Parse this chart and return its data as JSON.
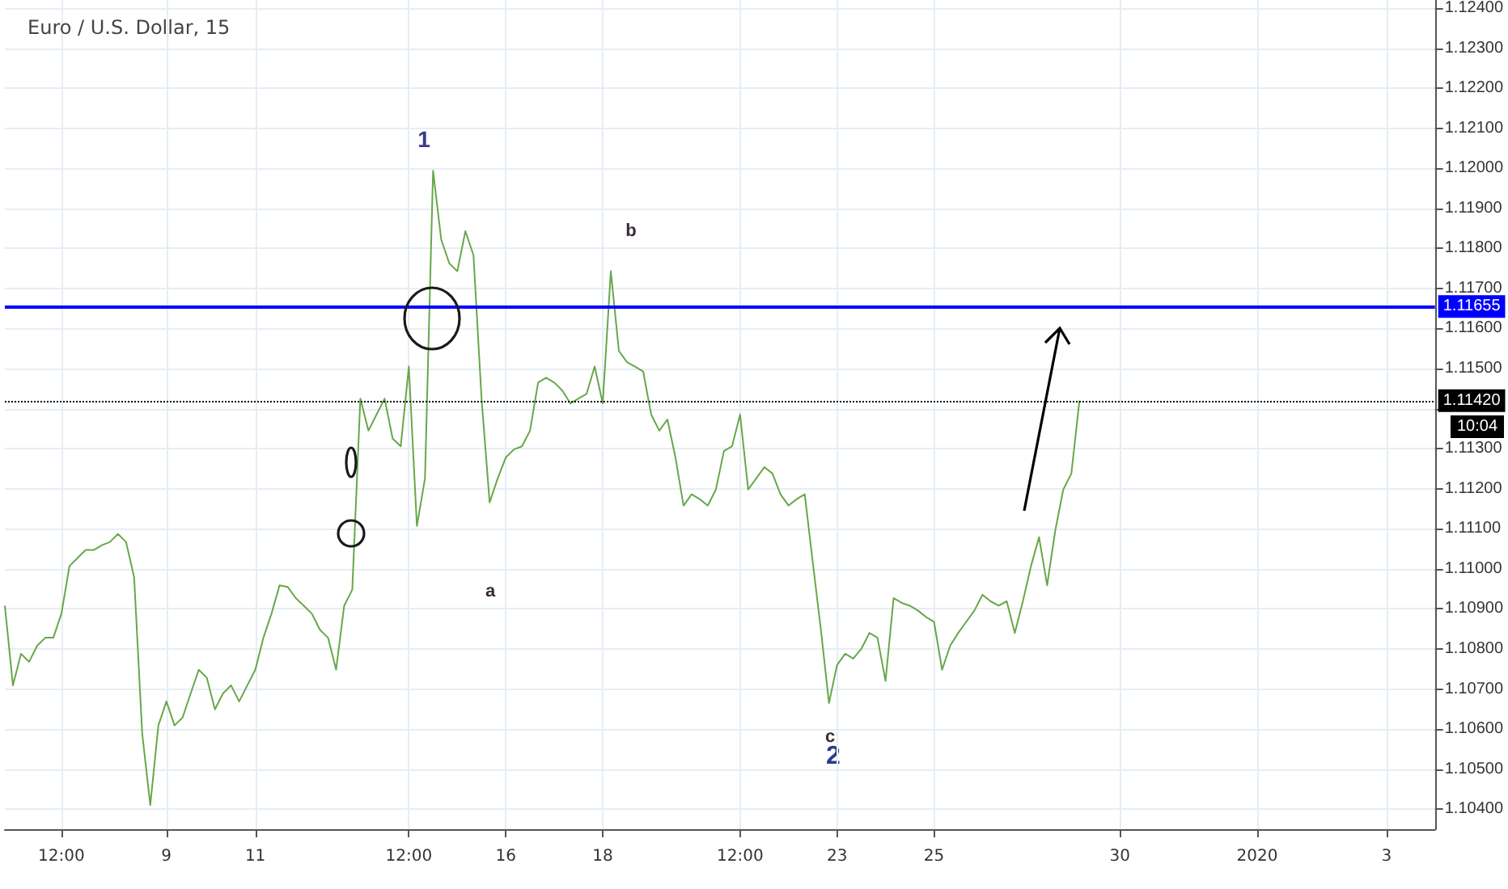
{
  "chart_data": {
    "type": "line",
    "title": "Euro / U.S. Dollar, 15",
    "categories": [
      null,
      null,
      null,
      null,
      null,
      null,
      null,
      "12:00",
      null,
      null,
      null,
      null,
      null,
      null,
      null,
      null,
      null,
      null,
      null,
      null,
      "9",
      null,
      null,
      null,
      null,
      null,
      null,
      null,
      null,
      null,
      null,
      "11",
      null,
      null,
      null,
      null,
      null,
      null,
      null,
      null,
      null,
      null,
      null,
      null,
      null,
      null,
      null,
      null,
      null,
      null,
      "12:00",
      null,
      null,
      null,
      null,
      null,
      null,
      null,
      null,
      null,
      null,
      null,
      "16",
      null,
      null,
      null,
      null,
      null,
      null,
      null,
      null,
      null,
      null,
      null,
      "18",
      null,
      null,
      null,
      null,
      null,
      null,
      null,
      null,
      null,
      null,
      null,
      null,
      null,
      null,
      null,
      null,
      "12:00",
      null,
      null,
      null,
      null,
      null,
      null,
      null,
      null,
      null,
      null,
      null,
      "23",
      null,
      null,
      null,
      null,
      null,
      null,
      null,
      null,
      null,
      null,
      null,
      "25",
      null,
      null,
      null,
      null,
      null,
      null,
      null,
      null,
      null,
      null,
      null,
      null,
      null,
      null,
      null,
      null,
      null,
      null,
      null,
      null,
      null,
      null,
      "30",
      null,
      null,
      null,
      null,
      null,
      null,
      null,
      null,
      null,
      null,
      null,
      null,
      null,
      null,
      null,
      null,
      "2020",
      null,
      null,
      null,
      null,
      null,
      null,
      null,
      null,
      null,
      null,
      null,
      null,
      null,
      null,
      null,
      "3",
      null,
      null,
      null,
      null,
      null,
      null
    ],
    "series": [
      {
        "color": "#68a74a",
        "values": [
          1.10908,
          1.10709,
          1.10788,
          1.10768,
          1.10808,
          1.10828,
          1.10828,
          1.10888,
          1.11007,
          1.11027,
          1.11047,
          1.11047,
          1.11059,
          1.11067,
          1.11087,
          1.11067,
          1.10979,
          1.10589,
          1.1041,
          1.10609,
          1.10669,
          1.10609,
          1.10629,
          1.10689,
          1.10748,
          1.10728,
          1.10649,
          1.10689,
          1.10709,
          1.10669,
          1.10709,
          1.10748,
          1.10828,
          1.10888,
          1.10959,
          1.10955,
          1.10927,
          1.10908,
          1.10888,
          1.10848,
          1.10828,
          1.10748,
          1.10908,
          1.10948,
          1.11425,
          1.11345,
          1.11385,
          1.11425,
          1.11325,
          1.11306,
          1.11505,
          1.11107,
          1.11226,
          1.11994,
          1.11823,
          1.11763,
          1.11743,
          1.11843,
          1.11783,
          1.11425,
          1.11166,
          1.11226,
          1.11278,
          1.11298,
          1.11306,
          1.11345,
          1.11465,
          1.11477,
          1.11465,
          1.11445,
          1.11413,
          1.11425,
          1.11437,
          1.11505,
          1.11413,
          1.11743,
          1.11544,
          1.11516,
          1.11505,
          1.11493,
          1.11385,
          1.11345,
          1.11373,
          1.11278,
          1.11158,
          1.11186,
          1.11174,
          1.11158,
          1.11198,
          1.11294,
          1.11306,
          1.11385,
          1.11198,
          1.11226,
          1.11254,
          1.11238,
          1.11186,
          1.11158,
          1.11174,
          1.11186,
          1.11015,
          1.10848,
          1.10665,
          1.1076,
          1.10788,
          1.10776,
          1.108,
          1.1084,
          1.10828,
          1.1072,
          1.10927,
          1.10915,
          1.10908,
          1.10896,
          1.1088,
          1.10868,
          1.10748,
          1.10808,
          1.1084,
          1.10868,
          1.10896,
          1.10935,
          1.10919,
          1.10908,
          1.10919,
          1.1084,
          1.10919,
          1.11007,
          1.11079,
          1.10959,
          1.11095,
          1.11198,
          1.11238,
          1.1142,
          null,
          null,
          null,
          null,
          null,
          null,
          null,
          null,
          null,
          null,
          null,
          null,
          null,
          null,
          null,
          null,
          null,
          null,
          null,
          null,
          null,
          null,
          null,
          null,
          null,
          null,
          null,
          null,
          null,
          null,
          null,
          null,
          null,
          null,
          null,
          null,
          null,
          null,
          null,
          null,
          null,
          null,
          null,
          null
        ]
      }
    ],
    "ylim": [
      1.1035,
      1.1242
    ],
    "yticks": [
      {
        "value": 1.104,
        "label": "1.10400"
      },
      {
        "value": 1.105,
        "label": "1.10500"
      },
      {
        "value": 1.106,
        "label": "1.10600"
      },
      {
        "value": 1.107,
        "label": "1.10700"
      },
      {
        "value": 1.108,
        "label": "1.10800"
      },
      {
        "value": 1.109,
        "label": "1.10900"
      },
      {
        "value": 1.11,
        "label": "1.11000"
      },
      {
        "value": 1.111,
        "label": "1.11100"
      },
      {
        "value": 1.112,
        "label": "1.11200"
      },
      {
        "value": 1.113,
        "label": "1.11300"
      },
      {
        "value": 1.114,
        "label": null
      },
      {
        "value": 1.115,
        "label": "1.11500"
      },
      {
        "value": 1.116,
        "label": "1.11600"
      },
      {
        "value": 1.117,
        "label": "1.11700"
      },
      {
        "value": 1.118,
        "label": "1.11800"
      },
      {
        "value": 1.119,
        "label": "1.11900"
      },
      {
        "value": 1.12,
        "label": "1.12000"
      },
      {
        "value": 1.121,
        "label": "1.12100"
      },
      {
        "value": 1.122,
        "label": "1.12200"
      },
      {
        "value": 1.123,
        "label": "1.12300"
      },
      {
        "value": 1.124,
        "label": "1.12400"
      }
    ],
    "ref_lines": [
      {
        "axis": "y",
        "value": 1.11655,
        "label": "1.11655",
        "color": "#0000ff",
        "line_style": "solid"
      },
      {
        "axis": "y",
        "value": 1.1142,
        "label": "1.11420",
        "color": "#000000",
        "line_style": "dotted"
      }
    ],
    "annotations": [
      "1",
      "a",
      "b",
      "c",
      "2",
      "10:04"
    ],
    "grid": true
  }
}
